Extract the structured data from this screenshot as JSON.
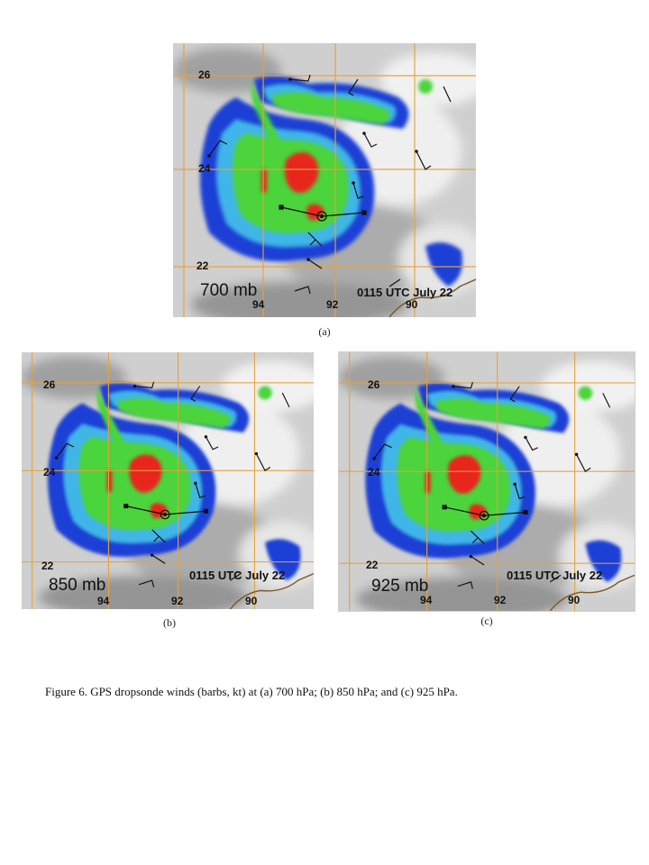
{
  "panels": [
    {
      "id": "a",
      "level": "700 mb",
      "utc": "0115 UTC July 22",
      "caption": "(a)",
      "lat_labels": [
        "26",
        "24",
        "22"
      ],
      "lon_labels": [
        "94",
        "92",
        "90"
      ]
    },
    {
      "id": "b",
      "level": "850 mb",
      "utc": "0115 UTC July 22",
      "caption": "(b)",
      "lat_labels": [
        "26",
        "24",
        "22"
      ],
      "lon_labels": [
        "94",
        "92",
        "90"
      ]
    },
    {
      "id": "c",
      "level": "925 mb",
      "utc": "0115 UTC July 22",
      "caption": "(c)",
      "lat_labels": [
        "26",
        "24",
        "22"
      ],
      "lon_labels": [
        "94",
        "92",
        "90"
      ]
    }
  ],
  "figure_caption": "Figure 6.  GPS dropsonde winds (barbs, kt) at (a) 700 hPa; (b) 850 hPa; and (c) 925 hPa.",
  "colors": {
    "cloud_gray": "#c8c8c8",
    "ir_blue": "#1c3fd6",
    "ir_cyan": "#3fb6e8",
    "ir_green": "#4cd43a",
    "ir_red": "#e8261e",
    "grid_orange": "#e8a13a"
  }
}
